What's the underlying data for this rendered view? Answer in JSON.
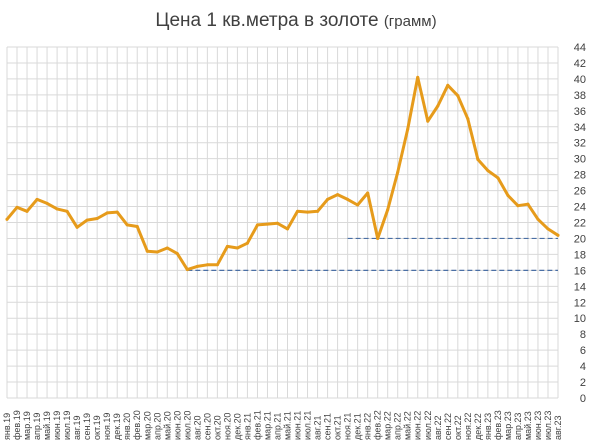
{
  "chart_data": {
    "type": "line",
    "title": "Цена 1 кв.метра в золоте",
    "title_unit": "(грамм)",
    "xlabel": "",
    "ylabel": "",
    "ylim": [
      0,
      44
    ],
    "ytick_step": 2,
    "grid": true,
    "legend": "none",
    "line_color": "#e69b1b",
    "ref_line_color": "#4a6fa5",
    "grid_color": "#d9d9d9",
    "categories": [
      "янв.19",
      "фев.19",
      "мар.19",
      "апр.19",
      "май.19",
      "июн.19",
      "июл.19",
      "авг.19",
      "сен.19",
      "окт.19",
      "ноя.19",
      "дек.19",
      "янв.20",
      "фев.20",
      "мар.20",
      "апр.20",
      "май.20",
      "июн.20",
      "июл.20",
      "авг.20",
      "сен.20",
      "окт.20",
      "ноя.20",
      "дек.20",
      "янв.21",
      "фев.21",
      "мар.21",
      "апр.21",
      "май.21",
      "июн.21",
      "июл.21",
      "авг.21",
      "сен.21",
      "окт.21",
      "ноя.21",
      "дек.21",
      "янв.22",
      "фев.22",
      "мар.22",
      "апр.22",
      "май.22",
      "июн.22",
      "июл.22",
      "авг.22",
      "сен.22",
      "окт.22",
      "ноя.22",
      "дек.22",
      "янв.23",
      "фев.23",
      "мар.23",
      "апр.23",
      "май.23",
      "июн.23",
      "июл.23",
      "авг.23"
    ],
    "values": [
      22.4,
      23.9,
      23.4,
      24.9,
      24.4,
      23.7,
      23.4,
      21.4,
      22.3,
      22.5,
      23.2,
      23.3,
      21.7,
      21.5,
      18.4,
      18.3,
      18.8,
      18.1,
      16.1,
      16.5,
      16.7,
      16.7,
      19.0,
      18.8,
      19.4,
      21.7,
      21.8,
      21.9,
      21.2,
      23.4,
      23.3,
      23.4,
      24.9,
      25.5,
      24.9,
      24.2,
      25.7,
      20.0,
      23.6,
      28.3,
      33.7,
      40.2,
      34.7,
      36.6,
      39.2,
      37.9,
      35.0,
      29.9,
      28.5,
      27.6,
      25.4,
      24.1,
      24.3,
      22.4,
      21.2,
      20.4
    ],
    "reference_lines": [
      {
        "y": 20,
        "from": "ноя.21",
        "to": "авг.23",
        "style": "dashed"
      },
      {
        "y": 16,
        "from": "июл.20",
        "to": "авг.23",
        "style": "dashed"
      }
    ]
  }
}
